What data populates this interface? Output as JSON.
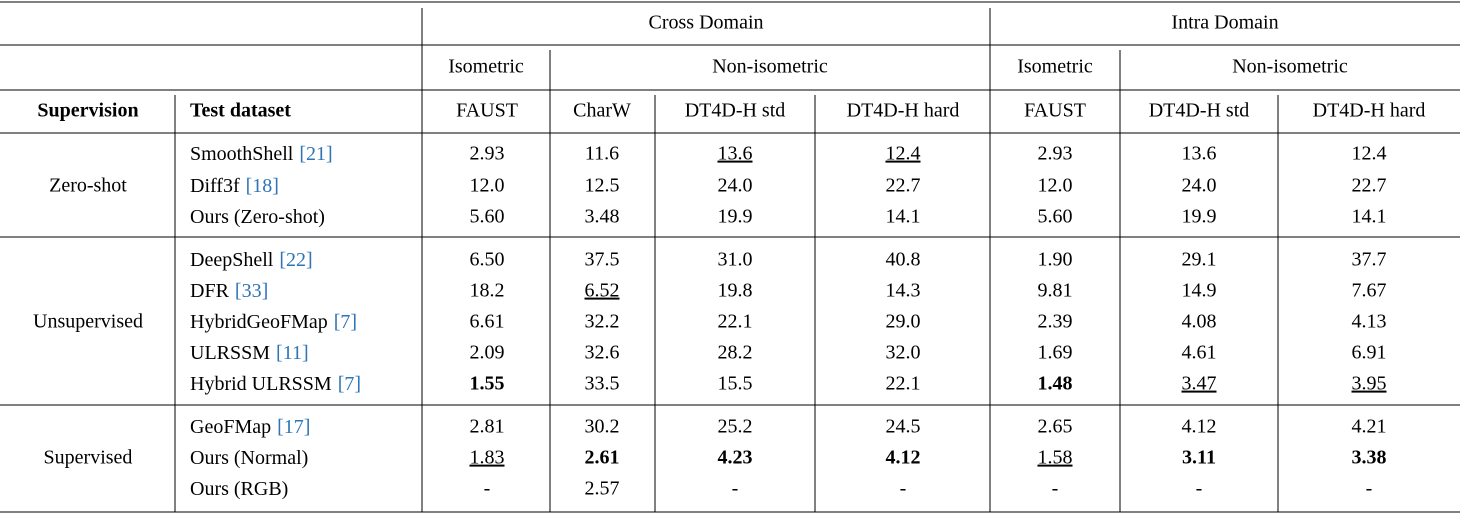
{
  "header": {
    "groups": [
      "Cross Domain",
      "Intra Domain"
    ],
    "subgroups": [
      "Isometric",
      "Non-isometric",
      "Isometric",
      "Non-isometric"
    ],
    "columns": [
      "Supervision",
      "Test dataset",
      "FAUST",
      "CharW",
      "DT4D-H std",
      "DT4D-H hard",
      "FAUST",
      "DT4D-H std",
      "DT4D-H hard"
    ]
  },
  "sections": [
    {
      "supervision": "Zero-shot",
      "rows": [
        {
          "method": "SmoothShell",
          "cite": "[21]",
          "values": [
            "2.93",
            "11.6",
            "13.6",
            "12.4",
            "2.93",
            "13.6",
            "12.4"
          ],
          "bold": [],
          "underline": [
            2,
            3
          ]
        },
        {
          "method": "Diff3f",
          "cite": "[18]",
          "values": [
            "12.0",
            "12.5",
            "24.0",
            "22.7",
            "12.0",
            "24.0",
            "22.7"
          ],
          "bold": [],
          "underline": []
        },
        {
          "method": "Ours (Zero-shot)",
          "values": [
            "5.60",
            "3.48",
            "19.9",
            "14.1",
            "5.60",
            "19.9",
            "14.1"
          ],
          "bold": [],
          "underline": []
        }
      ]
    },
    {
      "supervision": "Unsupervised",
      "rows": [
        {
          "method": "DeepShell",
          "cite": "[22]",
          "values": [
            "6.50",
            "37.5",
            "31.0",
            "40.8",
            "1.90",
            "29.1",
            "37.7"
          ],
          "bold": [],
          "underline": []
        },
        {
          "method": "DFR",
          "cite": "[33]",
          "values": [
            "18.2",
            "6.52",
            "19.8",
            "14.3",
            "9.81",
            "14.9",
            "7.67"
          ],
          "bold": [],
          "underline": [
            1
          ]
        },
        {
          "method": "HybridGeoFMap",
          "cite": "[7]",
          "values": [
            "6.61",
            "32.2",
            "22.1",
            "29.0",
            "2.39",
            "4.08",
            "4.13"
          ],
          "bold": [],
          "underline": []
        },
        {
          "method": "ULRSSM",
          "cite": "[11]",
          "values": [
            "2.09",
            "32.6",
            "28.2",
            "32.0",
            "1.69",
            "4.61",
            "6.91"
          ],
          "bold": [],
          "underline": []
        },
        {
          "method": "Hybrid ULRSSM",
          "cite": "[7]",
          "values": [
            "1.55",
            "33.5",
            "15.5",
            "22.1",
            "1.48",
            "3.47",
            "3.95"
          ],
          "bold": [
            0,
            4
          ],
          "underline": [
            5,
            6
          ]
        }
      ]
    },
    {
      "supervision": "Supervised",
      "rows": [
        {
          "method": "GeoFMap",
          "cite": "[17]",
          "values": [
            "2.81",
            "30.2",
            "25.2",
            "24.5",
            "2.65",
            "4.12",
            "4.21"
          ],
          "bold": [],
          "underline": []
        },
        {
          "method": "Ours (Normal)",
          "values": [
            "1.83",
            "2.61",
            "4.23",
            "4.12",
            "1.58",
            "3.11",
            "3.38"
          ],
          "bold": [
            1,
            2,
            3,
            5,
            6
          ],
          "underline": [
            0,
            4
          ]
        },
        {
          "method": "Ours (RGB)",
          "values": [
            "-",
            "2.57",
            "-",
            "-",
            "-",
            "-",
            "-"
          ],
          "bold": [],
          "underline": []
        }
      ]
    }
  ]
}
